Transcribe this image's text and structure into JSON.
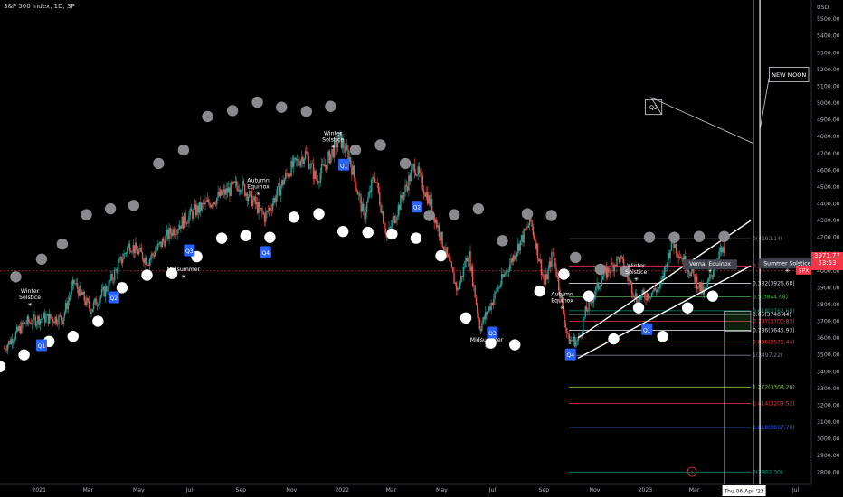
{
  "header": {
    "title": "S&P 500 Index, 1D, SP"
  },
  "axis": {
    "currency": "USD",
    "y_ticks": [
      2800,
      2900,
      3000,
      3100,
      3200,
      3300,
      3400,
      3500,
      3600,
      3700,
      3800,
      3900,
      4000,
      4100,
      4200,
      4300,
      4400,
      4500,
      4600,
      4700,
      4800,
      4900,
      5000,
      5100,
      5200,
      5300,
      5400,
      5500
    ],
    "y_tick_labels": [
      "2800.00",
      "2900.00",
      "3000.00",
      "3100.00",
      "3200.00",
      "3300.00",
      "3400.00",
      "3500.00",
      "3600.00",
      "3700.00",
      "3800.00",
      "3900.00",
      "4000.00",
      "4100.00",
      "4200.00",
      "4300.00",
      "4400.00",
      "4500.00",
      "4600.00",
      "4700.00",
      "4800.00",
      "4900.00",
      "5000.00",
      "5100.00",
      "5200.00",
      "5300.00",
      "5400.00",
      "5500.00"
    ],
    "x_ticks": [
      "2021",
      "Mar",
      "May",
      "Jul",
      "Sep",
      "Nov",
      "2022",
      "Mar",
      "May",
      "Jul",
      "Sep",
      "Nov",
      "2023",
      "Mar",
      "May",
      "Jul"
    ],
    "crosshair_date": "Thu 06 Apr '23"
  },
  "price_label": {
    "symbol": "SPX",
    "price": "3971.77",
    "countdown": "53:53",
    "color": "#f23645"
  },
  "colors": {
    "up": "#26a69a",
    "down": "#ef5350",
    "grey_dot": "#8a8a8e",
    "white_dot": "#ffffff",
    "quarter_badge": "#2962ff"
  },
  "chart_data": {
    "type": "candlestick",
    "title": "S&P 500 Index, 1D, SP",
    "ylim": [
      2750,
      5560
    ],
    "y_scale": "linear",
    "x_range": [
      "2020-11-15",
      "2023-07-20"
    ],
    "grid": false,
    "close_path": [
      {
        "date": "2020-11-20",
        "close": 3540
      },
      {
        "date": "2020-12-15",
        "close": 3690
      },
      {
        "date": "2021-01-05",
        "close": 3720
      },
      {
        "date": "2021-01-29",
        "close": 3715
      },
      {
        "date": "2021-02-12",
        "close": 3930
      },
      {
        "date": "2021-03-04",
        "close": 3770
      },
      {
        "date": "2021-03-25",
        "close": 3910
      },
      {
        "date": "2021-04-20",
        "close": 4160
      },
      {
        "date": "2021-05-12",
        "close": 4060
      },
      {
        "date": "2021-06-08",
        "close": 4230
      },
      {
        "date": "2021-07-06",
        "close": 4350
      },
      {
        "date": "2021-07-29",
        "close": 4420
      },
      {
        "date": "2021-08-31",
        "close": 4520
      },
      {
        "date": "2021-09-30",
        "close": 4320
      },
      {
        "date": "2021-10-29",
        "close": 4600
      },
      {
        "date": "2021-11-18",
        "close": 4700
      },
      {
        "date": "2021-12-01",
        "close": 4540
      },
      {
        "date": "2021-12-29",
        "close": 4790
      },
      {
        "date": "2022-01-10",
        "close": 4670
      },
      {
        "date": "2022-01-27",
        "close": 4320
      },
      {
        "date": "2022-02-09",
        "close": 4580
      },
      {
        "date": "2022-02-24",
        "close": 4200
      },
      {
        "date": "2022-03-29",
        "close": 4630
      },
      {
        "date": "2022-04-18",
        "close": 4390
      },
      {
        "date": "2022-05-20",
        "close": 3880
      },
      {
        "date": "2022-06-02",
        "close": 4120
      },
      {
        "date": "2022-06-16",
        "close": 3660
      },
      {
        "date": "2022-07-08",
        "close": 3900
      },
      {
        "date": "2022-08-16",
        "close": 4300
      },
      {
        "date": "2022-09-02",
        "close": 3920
      },
      {
        "date": "2022-09-12",
        "close": 4110
      },
      {
        "date": "2022-09-30",
        "close": 3590
      },
      {
        "date": "2022-10-12",
        "close": 3580
      },
      {
        "date": "2022-10-21",
        "close": 3750
      },
      {
        "date": "2022-11-10",
        "close": 3960
      },
      {
        "date": "2022-12-01",
        "close": 4080
      },
      {
        "date": "2022-12-22",
        "close": 3830
      },
      {
        "date": "2023-01-19",
        "close": 3900
      },
      {
        "date": "2023-02-02",
        "close": 4180
      },
      {
        "date": "2023-03-13",
        "close": 3860
      },
      {
        "date": "2023-03-31",
        "close": 4110
      },
      {
        "date": "2023-04-06",
        "close": 4105
      }
    ],
    "fibonacci": {
      "from_date": "2022-10-01",
      "to_date": "2023-05-08",
      "levels": [
        {
          "ratio": "0",
          "price": 4192.14,
          "label": "0(4192.14)",
          "color": "#787b86"
        },
        {
          "ratio": "0.236",
          "price": 4029.6,
          "label": "0.236(4029.60)",
          "color": "#f23645"
        },
        {
          "ratio": "0.382",
          "price": 3926.68,
          "label": "0.382(3926.68)",
          "color": "#d1d4dc"
        },
        {
          "ratio": "0.5",
          "price": 3844.68,
          "label": "0.5(3844.68)",
          "color": "#4caf50"
        },
        {
          "ratio": "0.618",
          "price": 3762.68,
          "label": "0.618(3762.68)",
          "color": "#089981"
        },
        {
          "ratio": "0.65",
          "price": 3740.44,
          "label": "0.65(3740.44)",
          "color": "#d1d4dc"
        },
        {
          "ratio": "0.707",
          "price": 3700.83,
          "label": "0.707(3700.83)",
          "color": "#f23645"
        },
        {
          "ratio": "0.786",
          "price": 3645.93,
          "label": "0.786(3645.93)",
          "color": "#d1d4dc"
        },
        {
          "ratio": "0.886",
          "price": 3576.44,
          "label": "0.886(3576.44)",
          "color": "#f23645"
        },
        {
          "ratio": "1",
          "price": 3497.22,
          "label": "1(3497.22)",
          "color": "#787b86"
        },
        {
          "ratio": "1.272",
          "price": 3308.2,
          "label": "1.272(3308.20)",
          "color": "#8bc34a"
        },
        {
          "ratio": "1.414",
          "price": 3209.52,
          "label": "1.414(3209.52)",
          "color": "#f23645"
        },
        {
          "ratio": "1.618",
          "price": 3067.76,
          "label": "1.618(3067.76)",
          "color": "#2962ff"
        },
        {
          "ratio": "2",
          "price": 2802.3,
          "label": "2(2802.30)",
          "color": "#089981"
        }
      ]
    },
    "channel": [
      {
        "from": [
          "2022-10-12",
          3600
        ],
        "to": [
          "2023-05-08",
          4300
        ],
        "color": "#ffffff"
      },
      {
        "from": [
          "2022-10-12",
          3480
        ],
        "to": [
          "2023-05-08",
          4030
        ],
        "color": "#ffffff"
      }
    ],
    "hline": {
      "price": 4000,
      "color": "#f23645"
    },
    "vlines": [
      "2023-05-11",
      "2023-05-19"
    ],
    "box": {
      "from_date": "2023-04-06",
      "to_date": "2023-05-08",
      "top": 3760,
      "bottom": 3640
    },
    "grey_dots": [
      {
        "date": "2020-12-04",
        "price": 3965
      },
      {
        "date": "2021-01-04",
        "price": 4070
      },
      {
        "date": "2021-01-29",
        "price": 4160
      },
      {
        "date": "2021-02-27",
        "price": 4335
      },
      {
        "date": "2021-03-28",
        "price": 4370
      },
      {
        "date": "2021-04-25",
        "price": 4390
      },
      {
        "date": "2021-05-25",
        "price": 4640
      },
      {
        "date": "2021-06-24",
        "price": 4720
      },
      {
        "date": "2021-07-23",
        "price": 4920
      },
      {
        "date": "2021-08-22",
        "price": 4955
      },
      {
        "date": "2021-09-21",
        "price": 5005
      },
      {
        "date": "2021-10-20",
        "price": 4975
      },
      {
        "date": "2021-11-19",
        "price": 4950
      },
      {
        "date": "2021-12-18",
        "price": 4980
      },
      {
        "date": "2022-01-17",
        "price": 4720
      },
      {
        "date": "2022-02-16",
        "price": 4750
      },
      {
        "date": "2022-03-18",
        "price": 4640
      },
      {
        "date": "2022-04-16",
        "price": 4330
      },
      {
        "date": "2022-05-16",
        "price": 4335
      },
      {
        "date": "2022-06-14",
        "price": 4370
      },
      {
        "date": "2022-07-13",
        "price": 4180
      },
      {
        "date": "2022-08-12",
        "price": 4340
      },
      {
        "date": "2022-09-10",
        "price": 4330
      },
      {
        "date": "2022-10-09",
        "price": 4080
      },
      {
        "date": "2022-11-08",
        "price": 4010
      },
      {
        "date": "2022-12-08",
        "price": 4000
      },
      {
        "date": "2023-01-06",
        "price": 4200
      },
      {
        "date": "2023-02-05",
        "price": 4200
      },
      {
        "date": "2023-03-07",
        "price": 4205
      },
      {
        "date": "2023-04-06",
        "price": 4205
      }
    ],
    "white_dots": [
      {
        "date": "2020-11-15",
        "price": 3430
      },
      {
        "date": "2020-12-14",
        "price": 3500
      },
      {
        "date": "2021-01-13",
        "price": 3580
      },
      {
        "date": "2021-02-11",
        "price": 3610
      },
      {
        "date": "2021-03-13",
        "price": 3700
      },
      {
        "date": "2021-04-11",
        "price": 3900
      },
      {
        "date": "2021-05-11",
        "price": 3975
      },
      {
        "date": "2021-06-10",
        "price": 3985
      },
      {
        "date": "2021-07-10",
        "price": 4085
      },
      {
        "date": "2021-08-09",
        "price": 4195
      },
      {
        "date": "2021-09-07",
        "price": 4210
      },
      {
        "date": "2021-10-06",
        "price": 4200
      },
      {
        "date": "2021-11-04",
        "price": 4320
      },
      {
        "date": "2021-12-04",
        "price": 4340
      },
      {
        "date": "2022-01-02",
        "price": 4235
      },
      {
        "date": "2022-02-01",
        "price": 4230
      },
      {
        "date": "2022-03-02",
        "price": 4220
      },
      {
        "date": "2022-03-31",
        "price": 4195
      },
      {
        "date": "2022-04-30",
        "price": 4090
      },
      {
        "date": "2022-05-30",
        "price": 3720
      },
      {
        "date": "2022-06-29",
        "price": 3570
      },
      {
        "date": "2022-07-28",
        "price": 3560
      },
      {
        "date": "2022-08-27",
        "price": 3880
      },
      {
        "date": "2022-09-25",
        "price": 3980
      },
      {
        "date": "2022-10-25",
        "price": 3850
      },
      {
        "date": "2022-11-24",
        "price": 3595
      },
      {
        "date": "2022-12-24",
        "price": 3780
      },
      {
        "date": "2023-01-22",
        "price": 3610
      },
      {
        "date": "2023-02-21",
        "price": 3780
      },
      {
        "date": "2023-03-23",
        "price": 3850
      }
    ],
    "quarter_badges": [
      {
        "label": "Q1",
        "date": "2021-01-04",
        "price": 3555
      },
      {
        "label": "Q2",
        "date": "2021-04-01",
        "price": 3840
      },
      {
        "label": "Q3",
        "date": "2021-07-01",
        "price": 4120
      },
      {
        "label": "Q4",
        "date": "2021-10-01",
        "price": 4110
      },
      {
        "label": "Q1",
        "date": "2022-01-03",
        "price": 4630
      },
      {
        "label": "Q2",
        "date": "2022-04-01",
        "price": 4380
      },
      {
        "label": "Q3",
        "date": "2022-07-01",
        "price": 3630
      },
      {
        "label": "Q4",
        "date": "2022-10-03",
        "price": 3500
      },
      {
        "label": "Q1",
        "date": "2023-01-03",
        "price": 3650
      }
    ],
    "season_labels": [
      {
        "lines": [
          "Winter",
          "Solstice"
        ],
        "date": "2020-12-21",
        "price": 3870
      },
      {
        "lines": [
          "Midsummer"
        ],
        "date": "2021-06-24",
        "price": 4000
      },
      {
        "lines": [
          "Autumn",
          "Equinox"
        ],
        "date": "2021-09-22",
        "price": 4530
      },
      {
        "lines": [
          "Winter",
          "Solstice"
        ],
        "date": "2021-12-21",
        "price": 4810
      },
      {
        "lines": [
          "Midsummer"
        ],
        "date": "2022-06-24",
        "price": 3580
      },
      {
        "lines": [
          "Autumn",
          "Equinox"
        ],
        "date": "2022-09-23",
        "price": 3850
      },
      {
        "lines": [
          "Winter",
          "Solstice"
        ],
        "date": "2022-12-21",
        "price": 4020
      },
      {
        "lines": [
          "Vernal Equinox"
        ],
        "date": "2023-03-20",
        "price": 4030
      },
      {
        "lines": [
          "Summer Solstice"
        ],
        "date": "2023-06-21",
        "price": 4035
      }
    ],
    "callouts": [
      {
        "text": "Q2",
        "date": "2023-01-11",
        "price": 4975
      },
      {
        "text": "NEW MOON",
        "date": "2023-06-23",
        "price": 5170
      }
    ]
  }
}
